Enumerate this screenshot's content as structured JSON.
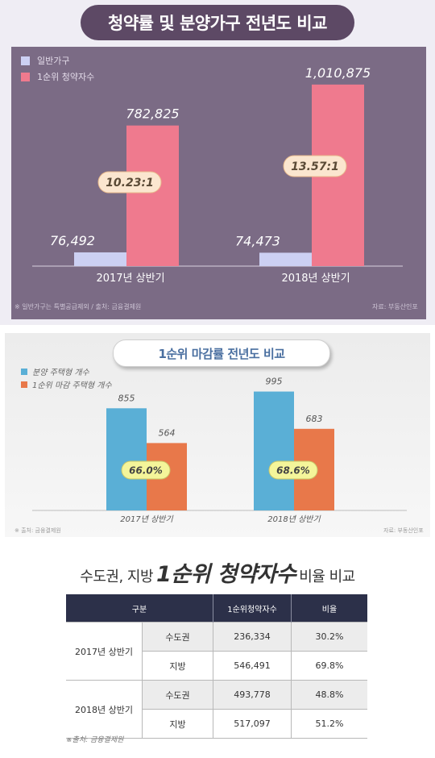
{
  "panel1": {
    "title": "청약률 및 분양가구 전년도 비교",
    "colors": {
      "general": "#ccd0f3",
      "first": "#ef7a8e",
      "bg": "#7b6b85"
    },
    "legend": [
      "일반가구",
      "1순위 청약자수"
    ],
    "footnote_left": "※ 일반가구는 특별공급제외 / 출처: 금융결제원",
    "footnote_right": "자료: 부동산인포"
  },
  "panel2": {
    "title": "1순위 마감률 전년도 비교",
    "colors": {
      "supply": "#5aafd6",
      "closed": "#e8784a"
    },
    "legend": [
      "분양 주택형 개수",
      "1순위 마감 주택형 개수"
    ],
    "footnote_left": "※ 출처: 금융결제원",
    "footnote_right": "자료: 부동산인포"
  },
  "heading": {
    "pre": "수도권, 지방",
    "big": "1순위 청약자수",
    "post": "비율 비교"
  },
  "table": {
    "headers": [
      "구분",
      "1순위청약자수",
      "비율"
    ],
    "groups": [
      {
        "label": "2017년 상반기",
        "rows": [
          {
            "region": "수도권",
            "count": "236,334",
            "ratio": "30.2%"
          },
          {
            "region": "지방",
            "count": "546,491",
            "ratio": "69.8%"
          }
        ]
      },
      {
        "label": "2018년 상반기",
        "rows": [
          {
            "region": "수도권",
            "count": "493,778",
            "ratio": "48.8%"
          },
          {
            "region": "지방",
            "count": "517,097",
            "ratio": "51.2%"
          }
        ]
      }
    ],
    "source": "※출처: 금융결제원"
  },
  "chart_data": [
    {
      "type": "bar",
      "title": "청약률 및 분양가구 전년도 비교",
      "categories": [
        "2017년 상반기",
        "2018년 상반기"
      ],
      "series": [
        {
          "name": "일반가구",
          "values": [
            76492,
            74473
          ],
          "labels": [
            "76,492",
            "74,473"
          ]
        },
        {
          "name": "1순위 청약자수",
          "values": [
            782825,
            1010875
          ],
          "labels": [
            "782,825",
            "1,010,875"
          ]
        }
      ],
      "annotations": [
        "10.23:1",
        "13.57:1"
      ],
      "ylim": [
        0,
        1100000
      ],
      "legend": "top-left"
    },
    {
      "type": "bar",
      "title": "1순위 마감률 전년도 비교",
      "categories": [
        "2017년 상반기",
        "2018년 상반기"
      ],
      "series": [
        {
          "name": "분양 주택형 개수",
          "values": [
            855,
            995
          ],
          "labels": [
            "855",
            "995"
          ]
        },
        {
          "name": "1순위 마감 주택형 개수",
          "values": [
            564,
            683
          ],
          "labels": [
            "564",
            "683"
          ]
        }
      ],
      "annotations": [
        "66.0%",
        "68.6%"
      ],
      "ylim": [
        0,
        1100
      ],
      "legend": "top-left"
    }
  ]
}
